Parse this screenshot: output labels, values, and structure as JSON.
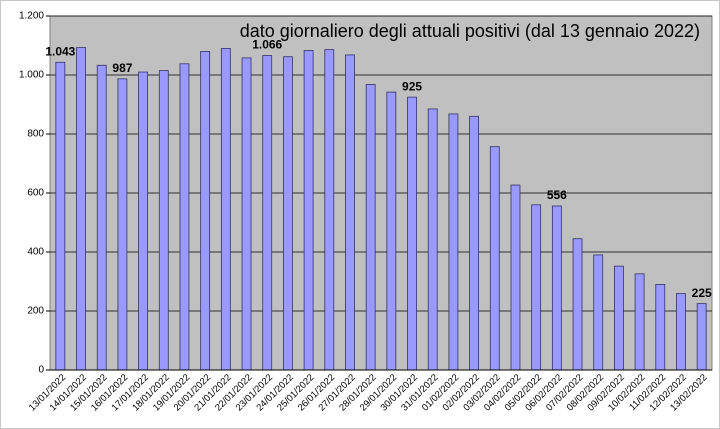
{
  "chart_data": {
    "type": "bar",
    "title": "dato giornaliero degli attuali positivi (dal 13 gennaio 2022)",
    "categories": [
      "13/01/2022",
      "14/01/2022",
      "15/01/2022",
      "16/01/2022",
      "17/01/2022",
      "18/01/2022",
      "19/01/2022",
      "20/01/2022",
      "21/01/2022",
      "22/01/2022",
      "23/01/2022",
      "24/01/2022",
      "25/01/2022",
      "26/01/2022",
      "27/01/2022",
      "28/01/2022",
      "29/01/2022",
      "30/01/2022",
      "31/01/2022",
      "01/02/2022",
      "02/02/2022",
      "03/02/2022",
      "04/02/2022",
      "05/02/2022",
      "06/02/2022",
      "07/02/2022",
      "08/02/2022",
      "09/02/2022",
      "10/02/2022",
      "11/02/2022",
      "12/02/2022",
      "13/02/2022"
    ],
    "values": [
      1043,
      1093,
      1033,
      987,
      1010,
      1015,
      1038,
      1080,
      1090,
      1058,
      1066,
      1062,
      1083,
      1086,
      1068,
      968,
      942,
      925,
      885,
      868,
      860,
      757,
      627,
      560,
      556,
      445,
      390,
      352,
      326,
      290,
      259,
      225
    ],
    "value_labels": [
      "1.043",
      null,
      null,
      "987",
      null,
      null,
      null,
      null,
      null,
      null,
      "1.066",
      null,
      null,
      null,
      null,
      null,
      null,
      "925",
      null,
      null,
      null,
      null,
      null,
      null,
      "556",
      null,
      null,
      null,
      null,
      null,
      null,
      "225"
    ],
    "color": "#9999ff",
    "ylim": [
      0,
      1200
    ],
    "yticks": [
      0,
      200,
      400,
      600,
      800,
      {
        "value": 1000,
        "label": "1.000"
      },
      {
        "value": 1200,
        "label": "1.200"
      }
    ],
    "grid": true
  }
}
